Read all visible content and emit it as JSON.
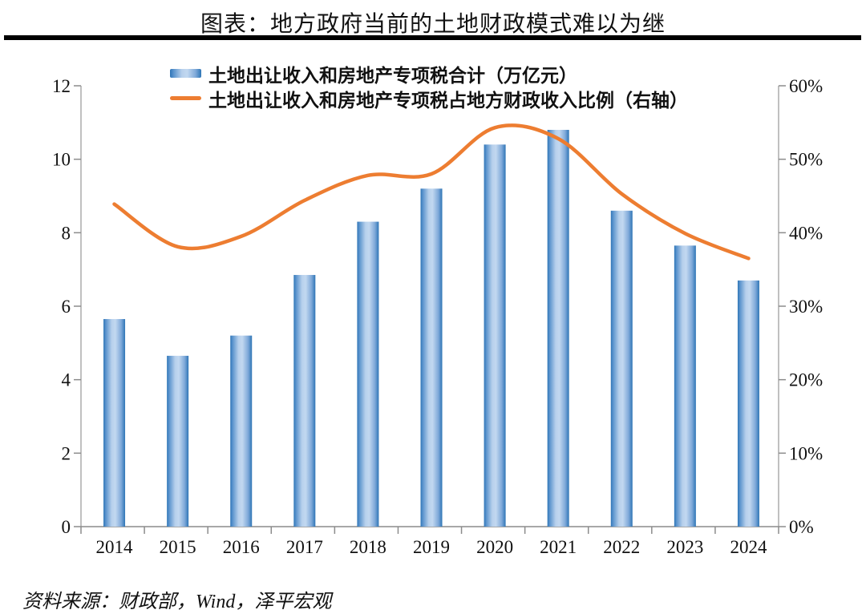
{
  "header": {
    "title": "图表：地方政府当前的土地财政模式难以为继"
  },
  "legend": {
    "bar_label": "土地出让收入和房地产专项税合计（万亿元）",
    "line_label": "土地出让收入和房地产专项税占地方财政收入比例（右轴）"
  },
  "footer": {
    "source": "资料来源：财政部，Wind，泽平宏观"
  },
  "colors": {
    "bar_edge": "#2E75B6",
    "bar_center": "#C2D8F0",
    "line": "#ED7D31",
    "axis_line": "#ACACAC",
    "tick": "#8C8C8C",
    "rule": "#000000",
    "text": "#111111"
  },
  "chart_data": {
    "type": "bar+line",
    "title": "图表：地方政府当前的土地财政模式难以为继",
    "categories": [
      "2014",
      "2015",
      "2016",
      "2017",
      "2018",
      "2019",
      "2020",
      "2021",
      "2022",
      "2023",
      "2024"
    ],
    "series": [
      {
        "name": "土地出让收入和房地产专项税合计（万亿元）",
        "type": "bar",
        "y_axis": "left",
        "color": "#2E75B6",
        "values": [
          5.65,
          4.65,
          5.2,
          6.85,
          8.3,
          9.2,
          10.4,
          10.8,
          8.6,
          7.65,
          6.7
        ]
      },
      {
        "name": "土地出让收入和房地产专项税占地方财政收入比例（右轴）",
        "type": "line",
        "y_axis": "right",
        "color": "#ED7D31",
        "values": [
          43.9,
          38.1,
          39.5,
          44.4,
          47.8,
          48.0,
          54.3,
          52.8,
          45.3,
          39.9,
          36.5
        ]
      }
    ],
    "left_axis": {
      "min": 0,
      "max": 12,
      "step": 2,
      "tick_labels": [
        "0",
        "2",
        "4",
        "6",
        "8",
        "10",
        "12"
      ]
    },
    "right_axis": {
      "min": 0,
      "max": 60,
      "step": 10,
      "tick_labels": [
        "0%",
        "10%",
        "20%",
        "30%",
        "40%",
        "50%",
        "60%"
      ]
    },
    "grid": false,
    "legend_position": "top-center",
    "xlabel": "",
    "ylabel_left": "万亿元",
    "ylabel_right": "%"
  }
}
